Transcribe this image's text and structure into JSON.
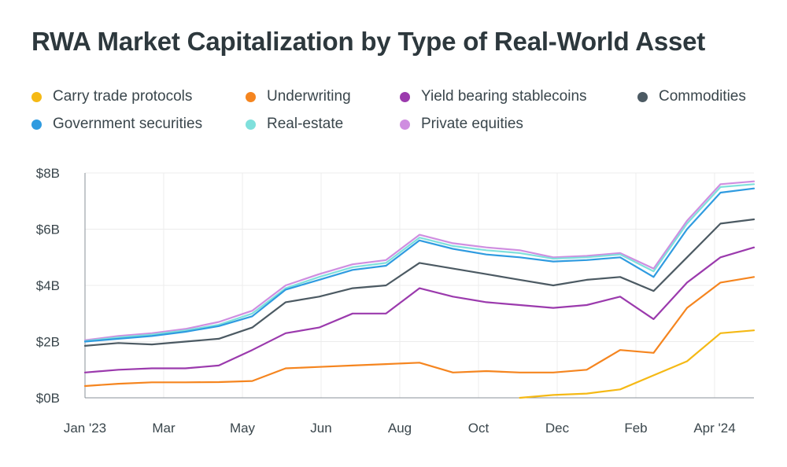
{
  "title": "RWA Market Capitalization by Type of Real-World Asset",
  "chart_data": {
    "type": "line",
    "title": "RWA Market Capitalization by Type of Real-World Asset",
    "xlabel": "",
    "ylabel": "",
    "ylim": [
      0,
      8
    ],
    "y_ticks": [
      "$0B",
      "$2B",
      "$4B",
      "$6B",
      "$8B"
    ],
    "x_ticks": [
      "Jan '23",
      "Mar",
      "May",
      "Jun",
      "Aug",
      "Oct",
      "Dec",
      "Feb",
      "Apr '24"
    ],
    "grid": true,
    "legend_position": "top",
    "x": [
      "Jan '23",
      "Feb '23",
      "Mar '23",
      "Apr '23",
      "May '23",
      "Mid May '23",
      "Jun '23",
      "Jul '23",
      "Aug '23",
      "Sep '23",
      "Oct '23",
      "Mid Oct '23",
      "Nov '23",
      "Dec '23",
      "Jan '24",
      "Feb '24",
      "Mar '24",
      "Mid Mar '24",
      "Apr '24",
      "Mid Apr '24",
      "May '24"
    ],
    "series": [
      {
        "name": "Carry trade protocols",
        "color": "#f5b915",
        "values": [
          null,
          null,
          null,
          null,
          null,
          null,
          null,
          null,
          null,
          null,
          null,
          null,
          null,
          0.0,
          0.1,
          0.15,
          0.3,
          0.8,
          1.3,
          2.3,
          2.4
        ]
      },
      {
        "name": "Underwriting",
        "color": "#f5851f",
        "values": [
          0.42,
          0.5,
          0.55,
          0.55,
          0.56,
          0.6,
          1.05,
          1.1,
          1.15,
          1.2,
          1.25,
          0.9,
          0.95,
          0.9,
          0.9,
          1.0,
          1.7,
          1.6,
          3.2,
          4.1,
          4.3
        ]
      },
      {
        "name": "Yield bearing stablecoins",
        "color": "#9b3aad",
        "values": [
          0.9,
          1.0,
          1.05,
          1.05,
          1.15,
          1.7,
          2.3,
          2.5,
          3.0,
          3.0,
          3.9,
          3.6,
          3.4,
          3.3,
          3.2,
          3.3,
          3.6,
          2.8,
          4.1,
          5.0,
          5.35
        ]
      },
      {
        "name": "Commodities",
        "color": "#4c5a63",
        "values": [
          1.85,
          1.95,
          1.9,
          2.0,
          2.1,
          2.5,
          3.4,
          3.6,
          3.9,
          4.0,
          4.8,
          4.6,
          4.4,
          4.2,
          4.0,
          4.2,
          4.3,
          3.8,
          5.0,
          6.2,
          6.35
        ]
      },
      {
        "name": "Government securities",
        "color": "#2f9be0",
        "values": [
          2.0,
          2.1,
          2.2,
          2.35,
          2.55,
          2.9,
          3.85,
          4.2,
          4.55,
          4.7,
          5.6,
          5.3,
          5.1,
          5.0,
          4.85,
          4.9,
          5.0,
          4.3,
          6.0,
          7.3,
          7.45
        ]
      },
      {
        "name": "Real-estate",
        "color": "#7fe0dc",
        "values": [
          2.02,
          2.15,
          2.25,
          2.4,
          2.6,
          3.0,
          3.9,
          4.3,
          4.65,
          4.8,
          5.7,
          5.4,
          5.25,
          5.15,
          4.95,
          5.0,
          5.1,
          4.5,
          6.2,
          7.5,
          7.6
        ]
      },
      {
        "name": "Private equities",
        "color": "#cf8ee0",
        "values": [
          2.05,
          2.2,
          2.3,
          2.45,
          2.7,
          3.1,
          4.0,
          4.4,
          4.75,
          4.9,
          5.8,
          5.5,
          5.35,
          5.25,
          5.0,
          5.05,
          5.15,
          4.6,
          6.3,
          7.6,
          7.7
        ]
      }
    ]
  }
}
